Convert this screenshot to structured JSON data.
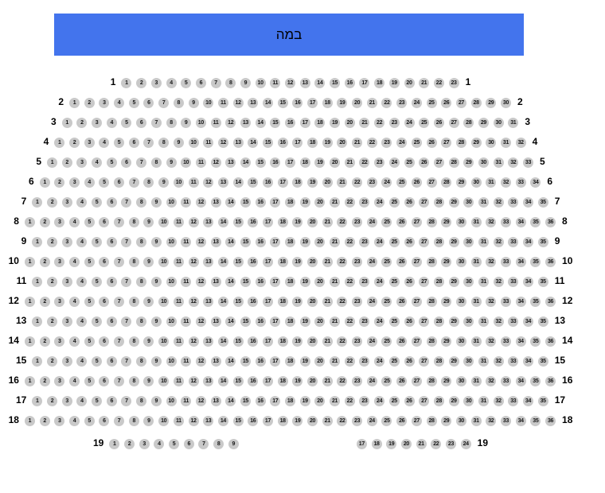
{
  "stage": {
    "label": "במה",
    "color": "#4374ed"
  },
  "seating": {
    "seat_color": "#c9c9c9",
    "rows": [
      {
        "label": "1",
        "groups": [
          {
            "first": 1,
            "last": 23
          }
        ]
      },
      {
        "label": "2",
        "groups": [
          {
            "first": 1,
            "last": 30
          }
        ]
      },
      {
        "label": "3",
        "groups": [
          {
            "first": 1,
            "last": 31
          }
        ]
      },
      {
        "label": "4",
        "groups": [
          {
            "first": 1,
            "last": 32
          }
        ]
      },
      {
        "label": "5",
        "groups": [
          {
            "first": 1,
            "last": 33
          }
        ]
      },
      {
        "label": "6",
        "groups": [
          {
            "first": 1,
            "last": 34
          }
        ]
      },
      {
        "label": "7",
        "groups": [
          {
            "first": 1,
            "last": 35
          }
        ]
      },
      {
        "label": "8",
        "groups": [
          {
            "first": 1,
            "last": 36
          }
        ]
      },
      {
        "label": "9",
        "groups": [
          {
            "first": 1,
            "last": 35
          }
        ]
      },
      {
        "label": "10",
        "groups": [
          {
            "first": 1,
            "last": 36
          }
        ]
      },
      {
        "label": "11",
        "groups": [
          {
            "first": 1,
            "last": 35
          }
        ]
      },
      {
        "label": "12",
        "groups": [
          {
            "first": 1,
            "last": 36
          }
        ]
      },
      {
        "label": "13",
        "groups": [
          {
            "first": 1,
            "last": 35
          }
        ]
      },
      {
        "label": "14",
        "groups": [
          {
            "first": 1,
            "last": 36
          }
        ]
      },
      {
        "label": "15",
        "groups": [
          {
            "first": 1,
            "last": 35
          }
        ]
      },
      {
        "label": "16",
        "groups": [
          {
            "first": 1,
            "last": 36
          }
        ]
      },
      {
        "label": "17",
        "groups": [
          {
            "first": 1,
            "last": 35
          }
        ]
      },
      {
        "label": "18",
        "groups": [
          {
            "first": 1,
            "last": 36
          }
        ]
      },
      {
        "label": "19",
        "groups": [
          {
            "first": 1,
            "last": 9
          },
          {
            "first": 17,
            "last": 24
          }
        ]
      }
    ]
  }
}
